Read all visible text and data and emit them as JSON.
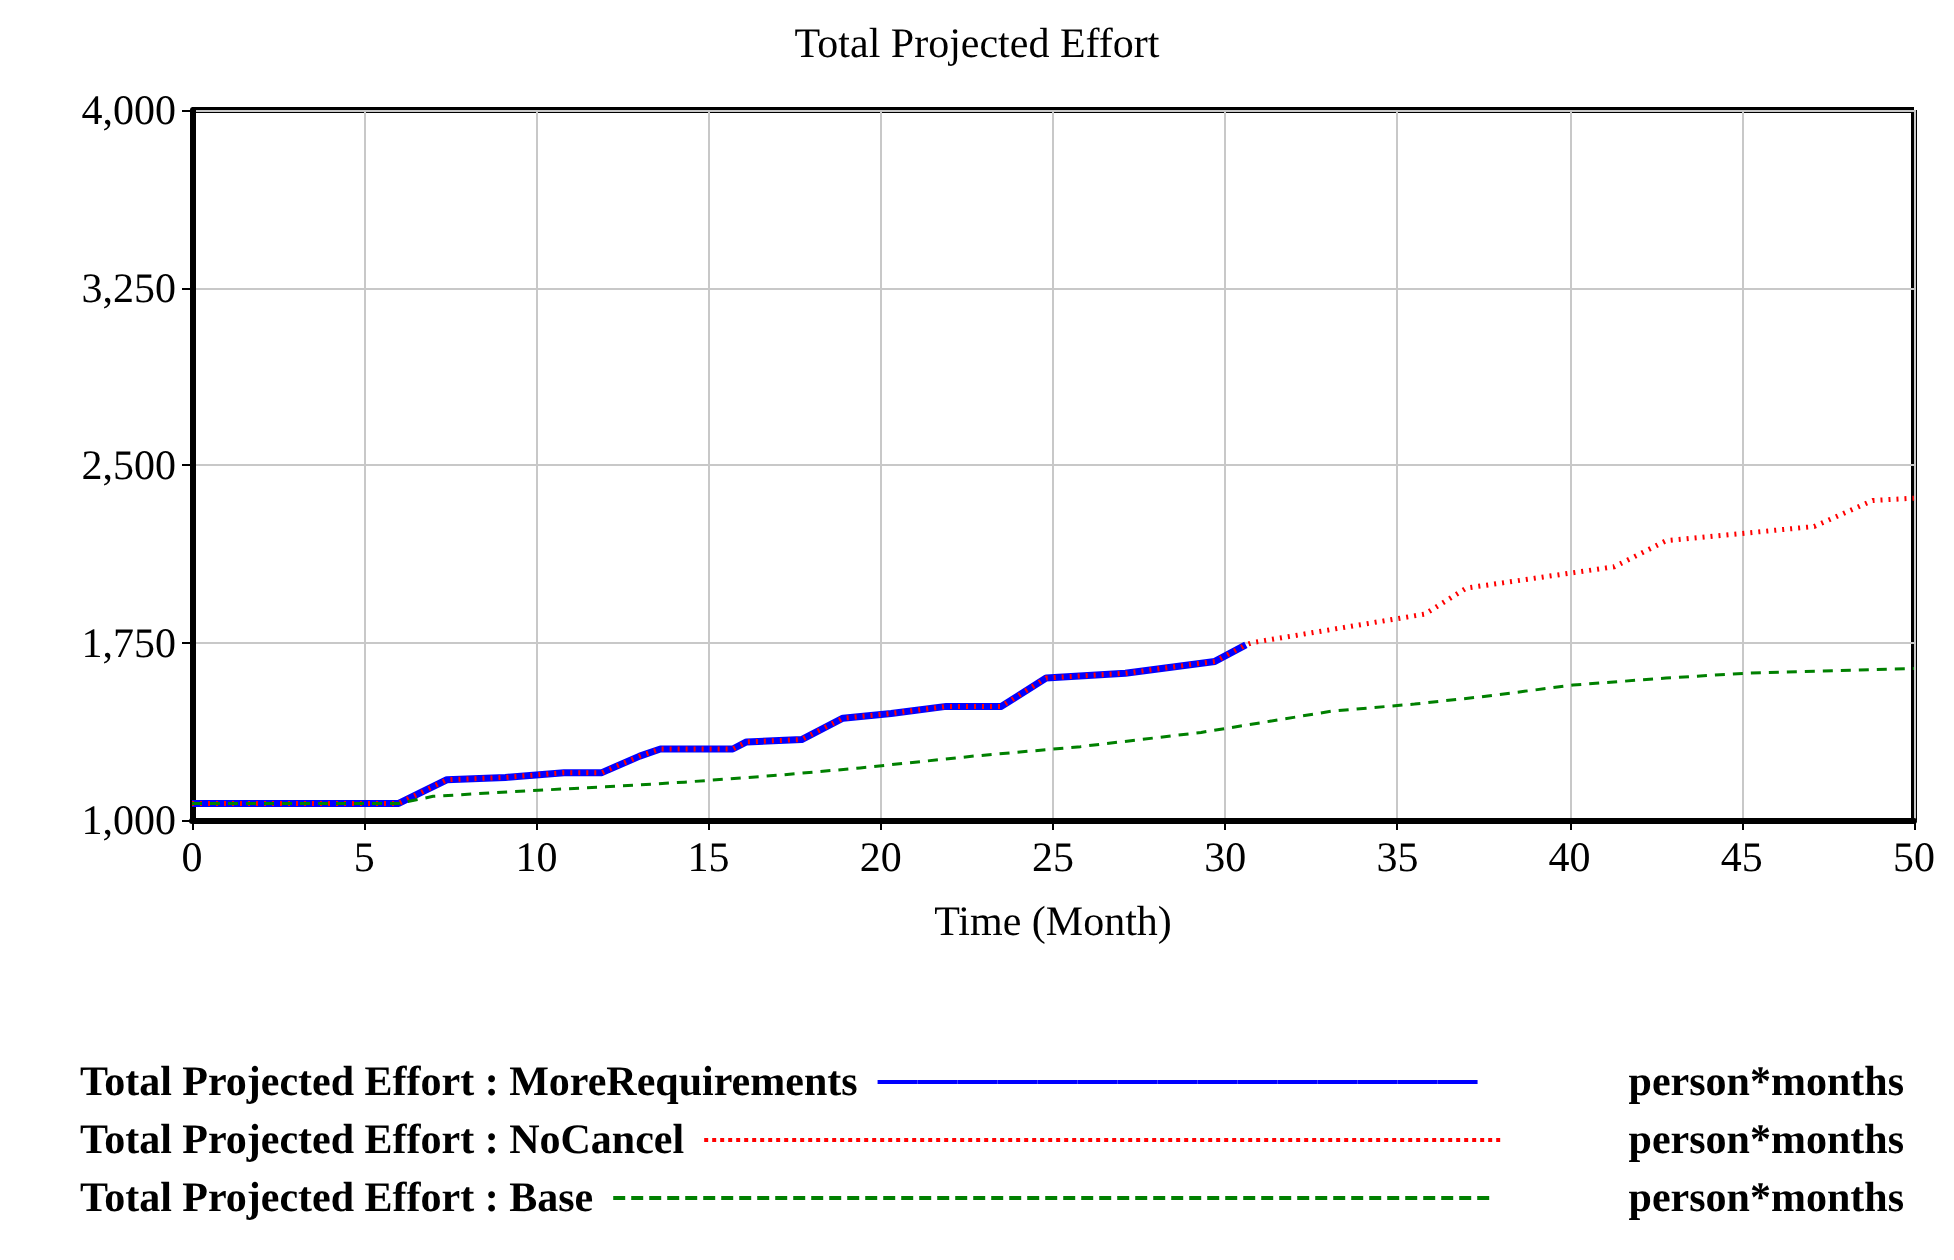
{
  "chart_data": {
    "type": "line",
    "title": "Total Projected Effort",
    "xlabel": "Time (Month)",
    "xlim": [
      0,
      50
    ],
    "xticks": [
      0,
      5,
      10,
      15,
      20,
      25,
      30,
      35,
      40,
      45,
      50
    ],
    "ylim": [
      1000,
      4000
    ],
    "yticks": [
      {
        "value": 1000,
        "label": "1,000"
      },
      {
        "value": 1750,
        "label": "1,750"
      },
      {
        "value": 2500,
        "label": "2,500"
      },
      {
        "value": 3250,
        "label": "3,250"
      },
      {
        "value": 4000,
        "label": "4,000"
      }
    ],
    "grid": true,
    "legend": "bottom",
    "marker": "none",
    "annotations": [
      "person*months",
      "person*months",
      "person*months"
    ],
    "series": [
      {
        "name": "Total Projected Effort : MoreRequirements",
        "color": "#0000ff",
        "line_style": "solid",
        "x": [
          0,
          6,
          7.4,
          9.1,
          10.8,
          11.9,
          13,
          13.6,
          15.7,
          16.1,
          17.7,
          18.9,
          20.3,
          21.9,
          23.5,
          24.8,
          27.1,
          29.7,
          30.6
        ],
        "values": [
          1070,
          1070,
          1170,
          1180,
          1200,
          1200,
          1270,
          1300,
          1300,
          1330,
          1340,
          1430,
          1450,
          1480,
          1480,
          1600,
          1620,
          1670,
          1740
        ]
      },
      {
        "name": "Total Projected Effort : NoCancel",
        "color": "#ff0000",
        "line_style": "dotted",
        "x": [
          0,
          6,
          7.4,
          9.1,
          10.8,
          11.9,
          13,
          13.6,
          15.7,
          16.1,
          17.7,
          18.9,
          20.3,
          21.9,
          23.5,
          24.8,
          27.1,
          29.7,
          30.6,
          30.8,
          35.8,
          37,
          41.3,
          42.8,
          47.1,
          48.8,
          50
        ],
        "values": [
          1070,
          1070,
          1170,
          1180,
          1200,
          1200,
          1270,
          1300,
          1300,
          1330,
          1340,
          1430,
          1450,
          1480,
          1480,
          1600,
          1620,
          1670,
          1740,
          1750,
          1870,
          1980,
          2070,
          2180,
          2240,
          2350,
          2360
        ]
      },
      {
        "name": "Total Projected Effort : Base",
        "color": "#008000",
        "line_style": "dashed",
        "x": [
          0,
          6,
          7,
          9.3,
          12,
          14.3,
          17.1,
          19.4,
          22.7,
          25.8,
          29.3,
          33.1,
          35.5,
          37.4,
          40.1,
          42.8,
          45.1,
          50
        ],
        "values": [
          1070,
          1070,
          1100,
          1120,
          1140,
          1160,
          1190,
          1220,
          1270,
          1310,
          1370,
          1460,
          1490,
          1520,
          1570,
          1600,
          1620,
          1640
        ]
      }
    ]
  }
}
